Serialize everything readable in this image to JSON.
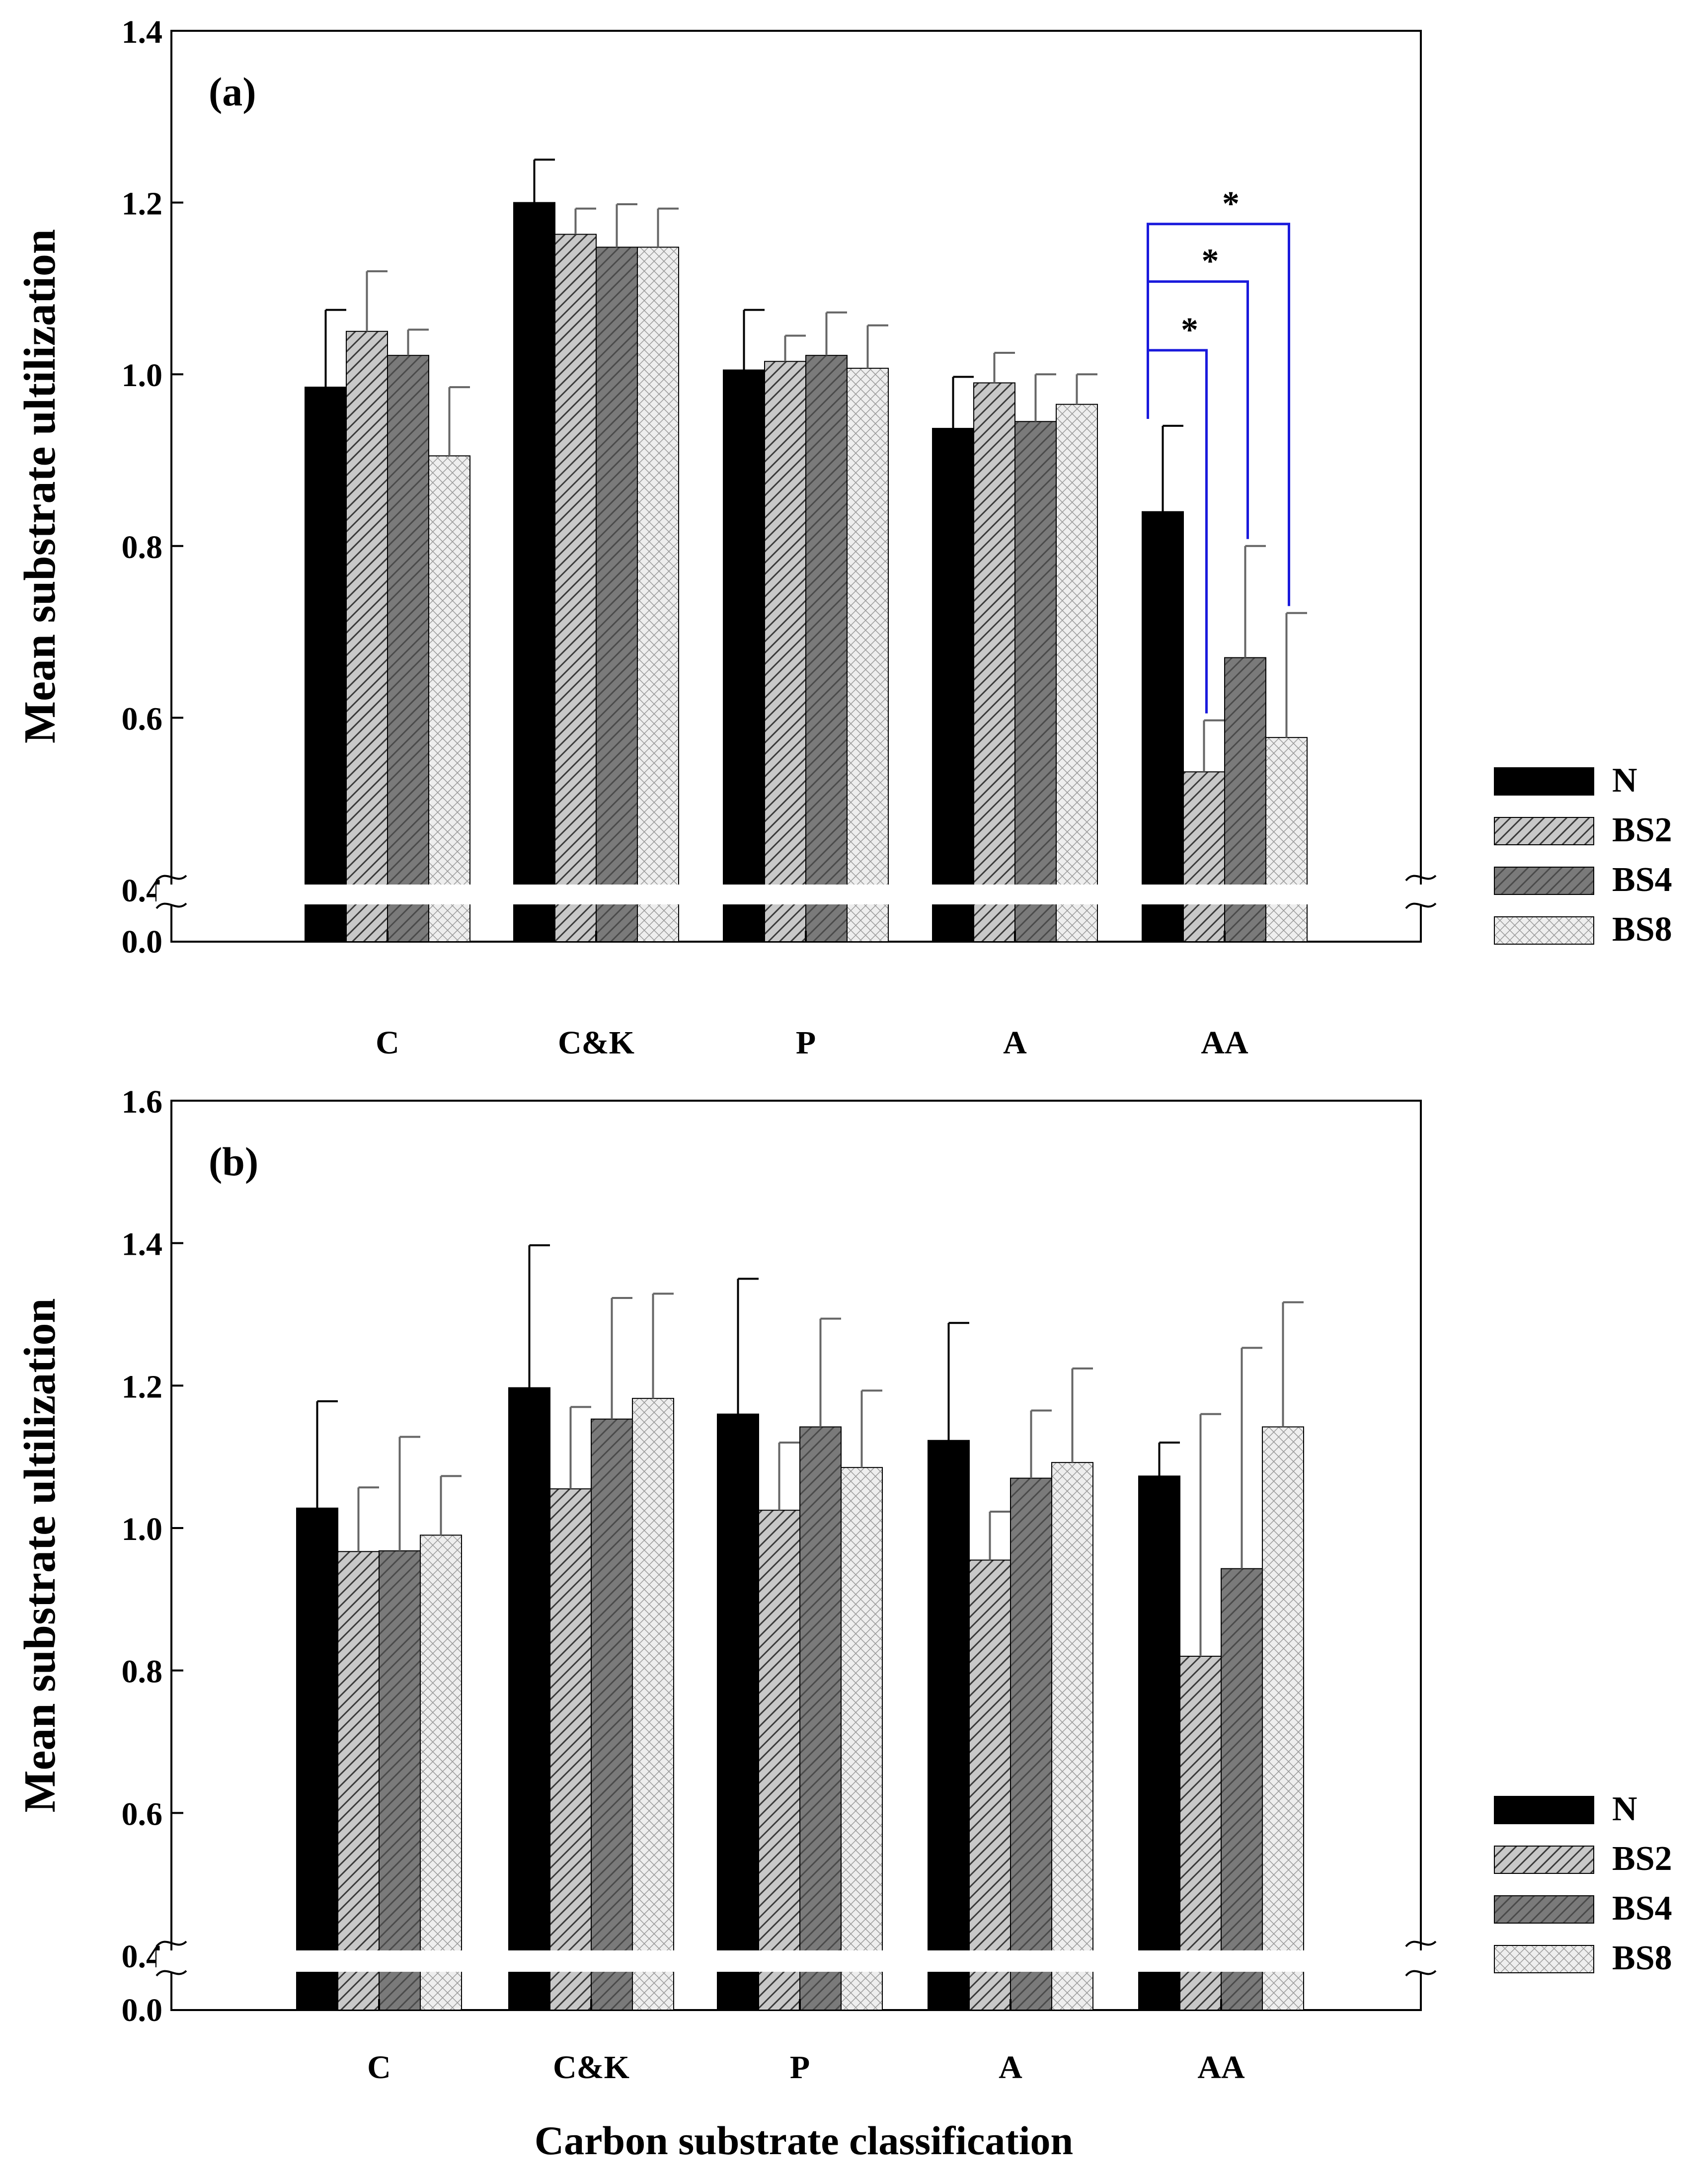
{
  "figure": {
    "xlabel": "Carbon substrate classification"
  },
  "colors": {
    "N": "#000000",
    "BS2": "#a9a9a9",
    "BS4": "#6a6a6a",
    "BS8": "#d9d9d9",
    "significance": "#1a1adc",
    "axis": "#000000"
  },
  "chart_data": [
    {
      "type": "bar",
      "panel_label": "(a)",
      "ylabel": "Mean substrate ultilization",
      "broken_axis": true,
      "ylim": [
        0.4,
        1.4
      ],
      "yticks": [
        "0.4",
        "0.6",
        "0.8",
        "1.0",
        "1.2",
        "1.4"
      ],
      "break_tick": "0.0",
      "categories": [
        "C",
        "C&K",
        "P",
        "A",
        "AA"
      ],
      "series": [
        {
          "name": "N",
          "pattern": "solid",
          "values": [
            0.985,
            1.2,
            1.005,
            0.937,
            0.84
          ],
          "errors": [
            0.09,
            0.05,
            0.07,
            0.06,
            0.1
          ]
        },
        {
          "name": "BS2",
          "pattern": "hatch",
          "values": [
            1.05,
            1.163,
            1.015,
            0.99,
            0.537
          ],
          "errors": [
            0.07,
            0.03,
            0.03,
            0.035,
            0.06
          ]
        },
        {
          "name": "BS4",
          "pattern": "dark-hatch",
          "values": [
            1.022,
            1.148,
            1.022,
            0.945,
            0.67
          ],
          "errors": [
            0.03,
            0.05,
            0.05,
            0.055,
            0.13
          ]
        },
        {
          "name": "BS8",
          "pattern": "crosshatch",
          "values": [
            0.905,
            1.148,
            1.007,
            0.965,
            0.577
          ],
          "errors": [
            0.08,
            0.045,
            0.05,
            0.035,
            0.145
          ]
        }
      ],
      "significance": [
        {
          "category": "AA",
          "from": "N",
          "to": "BS2",
          "label": "*"
        },
        {
          "category": "AA",
          "from": "N",
          "to": "BS4",
          "label": "*"
        },
        {
          "category": "AA",
          "from": "N",
          "to": "BS8",
          "label": "*"
        }
      ],
      "legend": {
        "position": "right",
        "entries": [
          "N",
          "BS2",
          "BS4",
          "BS8"
        ]
      }
    },
    {
      "type": "bar",
      "panel_label": "(b)",
      "ylabel": "Mean substrate ultilization",
      "broken_axis": true,
      "ylim": [
        0.4,
        1.6
      ],
      "yticks": [
        "0.4",
        "0.6",
        "0.8",
        "1.0",
        "1.2",
        "1.4",
        "1.6"
      ],
      "break_tick": "0.0",
      "categories": [
        "C",
        "C&K",
        "P",
        "A",
        "AA"
      ],
      "series": [
        {
          "name": "N",
          "pattern": "solid",
          "values": [
            1.028,
            1.197,
            1.16,
            1.123,
            1.073
          ],
          "errors": [
            0.15,
            0.2,
            0.19,
            0.165,
            0.047
          ]
        },
        {
          "name": "BS2",
          "pattern": "hatch",
          "values": [
            0.967,
            1.055,
            1.025,
            0.955,
            0.82
          ],
          "errors": [
            0.09,
            0.115,
            0.095,
            0.068,
            0.34
          ]
        },
        {
          "name": "BS4",
          "pattern": "dark-hatch",
          "values": [
            0.968,
            1.153,
            1.142,
            1.07,
            0.943
          ],
          "errors": [
            0.16,
            0.17,
            0.152,
            0.095,
            0.31
          ]
        },
        {
          "name": "BS8",
          "pattern": "crosshatch",
          "values": [
            0.99,
            1.182,
            1.085,
            1.092,
            1.142
          ],
          "errors": [
            0.083,
            0.147,
            0.108,
            0.132,
            0.175
          ]
        }
      ],
      "legend": {
        "position": "right",
        "entries": [
          "N",
          "BS2",
          "BS4",
          "BS8"
        ]
      }
    }
  ]
}
